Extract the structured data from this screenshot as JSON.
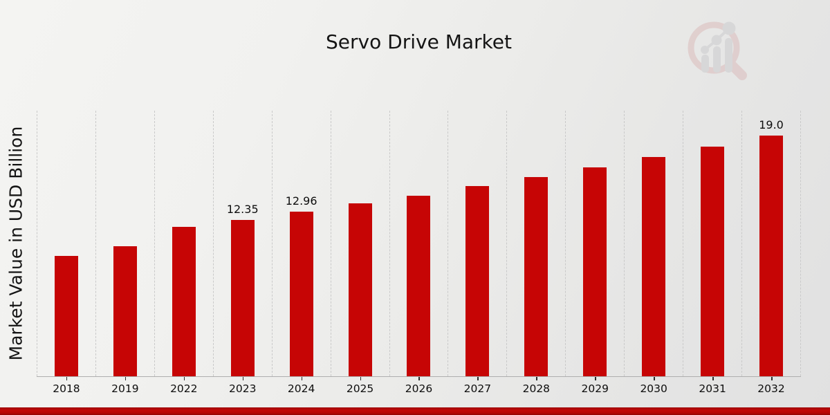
{
  "chart_data": {
    "type": "bar",
    "title": "Servo Drive Market",
    "xlabel": "",
    "ylabel": "Market Value in USD Billion",
    "categories": [
      "2018",
      "2019",
      "2022",
      "2023",
      "2024",
      "2025",
      "2026",
      "2027",
      "2028",
      "2029",
      "2030",
      "2031",
      "2032"
    ],
    "values": [
      9.48,
      10.25,
      11.78,
      12.35,
      12.96,
      13.66,
      14.26,
      15.0,
      15.69,
      16.46,
      17.27,
      18.11,
      19.0
    ],
    "value_labels_shown": [
      "",
      "",
      "",
      "12.35",
      "12.96",
      "",
      "",
      "",
      "",
      "",
      "",
      "",
      "19.0"
    ],
    "ylim": [
      0,
      21
    ],
    "grid": "vertical-dashed",
    "legend": "none",
    "bar_color": "#c60505"
  },
  "colors": {
    "bar": "#c60505",
    "grid_line": "#c9c9c9",
    "axis_line": "#aeaeae",
    "text": "#141414",
    "bottom_strip": "#b50505",
    "watermark_ring": "#c06060",
    "watermark_bars": "#8f8f9a"
  },
  "watermark": {
    "icon": "magnifier-bar-chart-logo-icon"
  }
}
